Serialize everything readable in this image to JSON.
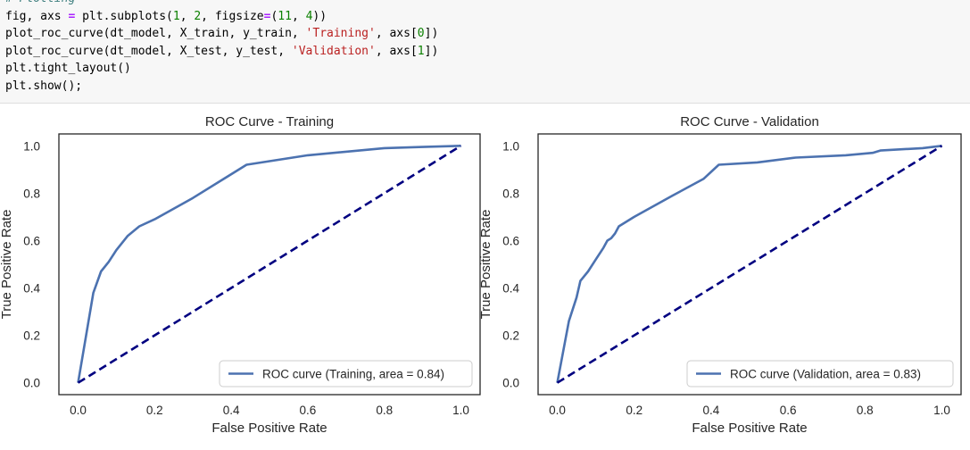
{
  "code": {
    "lines": [
      [
        {
          "t": "# Plotting",
          "c": "comment"
        }
      ],
      [
        {
          "t": "fig, axs "
        },
        {
          "t": "=",
          "c": "op"
        },
        {
          "t": " plt.subplots("
        },
        {
          "t": "1",
          "c": "number"
        },
        {
          "t": ", "
        },
        {
          "t": "2",
          "c": "number"
        },
        {
          "t": ", figsize"
        },
        {
          "t": "=",
          "c": "op"
        },
        {
          "t": "("
        },
        {
          "t": "11",
          "c": "number"
        },
        {
          "t": ", "
        },
        {
          "t": "4",
          "c": "number"
        },
        {
          "t": "))"
        }
      ],
      [
        {
          "t": "plot_roc_curve(dt_model, X_train, y_train, "
        },
        {
          "t": "'Training'",
          "c": "string"
        },
        {
          "t": ", axs["
        },
        {
          "t": "0",
          "c": "number"
        },
        {
          "t": "])"
        }
      ],
      [
        {
          "t": "plot_roc_curve(dt_model, X_test, y_test, "
        },
        {
          "t": "'Validation'",
          "c": "string"
        },
        {
          "t": ", axs["
        },
        {
          "t": "1",
          "c": "number"
        },
        {
          "t": "])"
        }
      ],
      [
        {
          "t": "plt.tight_layout()"
        }
      ],
      [
        {
          "t": "plt.show();"
        }
      ]
    ]
  },
  "colors": {
    "roc_line": "#4c72b0",
    "diagonal": "#000080",
    "axes_edge": "#262626",
    "string": "#ba2121",
    "number": "#0b8000",
    "comment": "#408080",
    "operator": "#aa22ff"
  },
  "chart_data": [
    {
      "type": "line",
      "title": "ROC Curve - Training",
      "xlabel": "False Positive Rate",
      "ylabel": "True Positive Rate",
      "xlim": [
        -0.05,
        1.05
      ],
      "ylim": [
        -0.05,
        1.05
      ],
      "xticks": [
        0.0,
        0.2,
        0.4,
        0.6,
        0.8,
        1.0
      ],
      "yticks": [
        0.0,
        0.2,
        0.4,
        0.6,
        0.8,
        1.0
      ],
      "xtick_labels": [
        "0.0",
        "0.2",
        "0.4",
        "0.6",
        "0.8",
        "1.0"
      ],
      "ytick_labels": [
        "0.0",
        "0.2",
        "0.4",
        "0.6",
        "0.8",
        "1.0"
      ],
      "grid": false,
      "legend_position": "lower-right",
      "series": [
        {
          "name": "ROC curve (Training, area = 0.84)",
          "style": "solid",
          "x": [
            0.0,
            0.04,
            0.06,
            0.08,
            0.1,
            0.13,
            0.16,
            0.2,
            0.3,
            0.44,
            0.6,
            0.8,
            0.9,
            1.0
          ],
          "y": [
            0.0,
            0.38,
            0.47,
            0.51,
            0.56,
            0.62,
            0.66,
            0.69,
            0.78,
            0.92,
            0.96,
            0.99,
            0.995,
            1.0
          ]
        },
        {
          "style": "dashed",
          "x": [
            0.0,
            1.0
          ],
          "y": [
            0.0,
            1.0
          ]
        }
      ]
    },
    {
      "type": "line",
      "title": "ROC Curve - Validation",
      "xlabel": "False Positive Rate",
      "ylabel": "True Positive Rate",
      "xlim": [
        -0.05,
        1.05
      ],
      "ylim": [
        -0.05,
        1.05
      ],
      "xticks": [
        0.0,
        0.2,
        0.4,
        0.6,
        0.8,
        1.0
      ],
      "yticks": [
        0.0,
        0.2,
        0.4,
        0.6,
        0.8,
        1.0
      ],
      "xtick_labels": [
        "0.0",
        "0.2",
        "0.4",
        "0.6",
        "0.8",
        "1.0"
      ],
      "ytick_labels": [
        "0.0",
        "0.2",
        "0.4",
        "0.6",
        "0.8",
        "1.0"
      ],
      "grid": false,
      "legend_position": "lower-right",
      "series": [
        {
          "name": "ROC curve (Validation, area = 0.83)",
          "style": "solid",
          "x": [
            0.0,
            0.03,
            0.05,
            0.06,
            0.08,
            0.1,
            0.12,
            0.13,
            0.14,
            0.15,
            0.16,
            0.2,
            0.3,
            0.38,
            0.42,
            0.52,
            0.62,
            0.75,
            0.82,
            0.84,
            0.95,
            1.0
          ],
          "y": [
            0.0,
            0.26,
            0.36,
            0.43,
            0.47,
            0.52,
            0.57,
            0.6,
            0.61,
            0.63,
            0.66,
            0.7,
            0.79,
            0.86,
            0.92,
            0.93,
            0.95,
            0.96,
            0.97,
            0.98,
            0.99,
            1.0
          ]
        },
        {
          "style": "dashed",
          "x": [
            0.0,
            1.0
          ],
          "y": [
            0.0,
            1.0
          ]
        }
      ]
    }
  ]
}
